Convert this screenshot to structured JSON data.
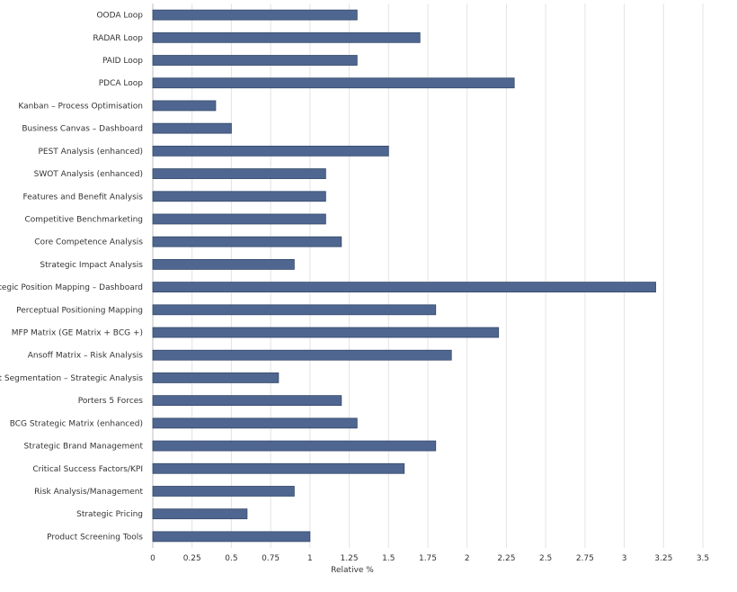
{
  "chart_data": {
    "type": "bar",
    "orientation": "horizontal",
    "categories": [
      "OODA Loop",
      "RADAR Loop",
      "PAID Loop",
      "PDCA Loop",
      "Kanban – Process Optimisation",
      "Business Canvas – Dashboard",
      "PEST Analysis (enhanced)",
      "SWOT Analysis (enhanced)",
      "Features and Benefit Analysis",
      "Competitive Benchmarketing",
      "Core Competence Analysis",
      "Strategic Impact Analysis",
      "Strategic Position Mapping – Dashboard",
      "Perceptual Positioning Mapping",
      "MFP Matrix (GE Matrix + BCG +)",
      "Ansoff Matrix – Risk Analysis",
      "Market Segmentation – Strategic Analysis",
      "Porters 5 Forces",
      "BCG Strategic Matrix (enhanced)",
      "Strategic Brand Management",
      "Critical Success Factors/KPI",
      "Risk Analysis/Management",
      "Strategic Pricing",
      "Product Screening Tools"
    ],
    "values": [
      1.3,
      1.7,
      1.3,
      2.3,
      0.4,
      0.5,
      1.5,
      1.1,
      1.1,
      1.1,
      1.2,
      0.9,
      3.2,
      1.8,
      2.2,
      1.9,
      0.8,
      1.2,
      1.3,
      1.8,
      1.6,
      0.9,
      0.6,
      1.0
    ],
    "xlabel": "Relative %",
    "ylabel": "",
    "title": "",
    "xlim": [
      0,
      3.5
    ],
    "xticks": [
      "0",
      "0.25",
      "0.5",
      "0.75",
      "1",
      "1.25",
      "1.5",
      "1.75",
      "2",
      "2.25",
      "2.5",
      "2.75",
      "3",
      "3.25",
      "3.5"
    ],
    "grid": "vertical",
    "legend": "none",
    "bar_color": "#4f6690"
  }
}
